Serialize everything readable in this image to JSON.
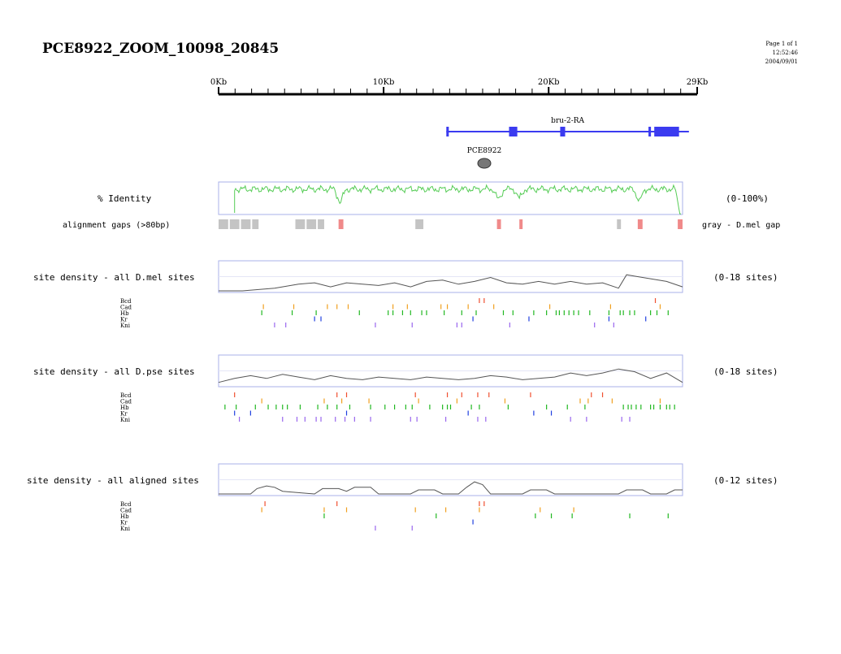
{
  "page": {
    "title": "PCE8922_ZOOM_10098_20845",
    "page_info": "Page 1 of 1",
    "time": "12:52:46",
    "date": "2004/09/01"
  },
  "ruler": {
    "min_kb": 0,
    "max_kb": 29,
    "labels": [
      {
        "kb": 0,
        "text": "0Kb"
      },
      {
        "kb": 10,
        "text": "10Kb"
      },
      {
        "kb": 20,
        "text": "20Kb"
      },
      {
        "kb": 29,
        "text": "29Kb"
      }
    ]
  },
  "gene": {
    "name": "bru-2-RA",
    "start_kb": 13.8,
    "end_kb": 28.5,
    "exons": [
      [
        13.8,
        13.95
      ],
      [
        17.6,
        18.1
      ],
      [
        20.7,
        21.0
      ],
      [
        26.05,
        26.2
      ],
      [
        26.4,
        27.9
      ]
    ],
    "color": "#3b3bf0"
  },
  "element": {
    "name": "PCE8922",
    "kb": 16.1,
    "color": "#777777"
  },
  "identity": {
    "label": "% Identity",
    "range_label": "(0-100%)",
    "color": "#55cc55"
  },
  "gaps": {
    "label": "alignment gaps (>80bp)",
    "legend": "gray - D.mel gap",
    "gray": [
      [
        0,
        0.6
      ],
      [
        0.7,
        1.3
      ],
      [
        1.4,
        2.0
      ],
      [
        2.1,
        2.5
      ],
      [
        4.8,
        5.4
      ],
      [
        5.5,
        6.1
      ],
      [
        6.2,
        6.6
      ],
      [
        12.3,
        12.8
      ],
      [
        24.9,
        25.15
      ]
    ],
    "pink": [
      [
        7.5,
        7.8
      ],
      [
        17.4,
        17.65
      ],
      [
        18.8,
        18.95
      ],
      [
        26.2,
        26.5
      ],
      [
        28.7,
        29.0
      ]
    ],
    "gray_color": "#c4c4c4",
    "pink_color": "#f08a8a"
  },
  "factors": [
    "Bcd",
    "Cad",
    "Hb",
    "Kr",
    "Kni"
  ],
  "factor_colors": {
    "Bcd": "#f05030",
    "Cad": "#f0a020",
    "Hb": "#22b822",
    "Kr": "#2040e0",
    "Kni": "#9966ee"
  },
  "panels": [
    {
      "label": "site density - all D.mel sites",
      "range_label": "(0-18 sites)",
      "profile": [
        [
          0,
          0
        ],
        [
          1.5,
          0
        ],
        [
          2.5,
          0.05
        ],
        [
          3.5,
          0.1
        ],
        [
          5,
          0.25
        ],
        [
          6,
          0.3
        ],
        [
          7,
          0.15
        ],
        [
          8,
          0.3
        ],
        [
          9,
          0.25
        ],
        [
          10,
          0.2
        ],
        [
          11,
          0.3
        ],
        [
          12,
          0.15
        ],
        [
          13,
          0.35
        ],
        [
          14,
          0.4
        ],
        [
          15,
          0.25
        ],
        [
          16,
          0.35
        ],
        [
          17,
          0.5
        ],
        [
          18,
          0.3
        ],
        [
          19,
          0.25
        ],
        [
          20,
          0.35
        ],
        [
          21,
          0.25
        ],
        [
          22,
          0.35
        ],
        [
          23,
          0.25
        ],
        [
          24,
          0.3
        ],
        [
          25,
          0.1
        ],
        [
          25.5,
          0.6
        ],
        [
          26,
          0.55
        ],
        [
          27,
          0.45
        ],
        [
          28,
          0.35
        ],
        [
          29,
          0.15
        ]
      ],
      "sites": {
        "Bcd": [
          16.3,
          16.6,
          27.3
        ],
        "Cad": [
          2.8,
          4.7,
          6.8,
          7.4,
          8.1,
          10.9,
          11.8,
          13.9,
          14.3,
          15.6,
          17.2,
          20.7,
          24.5,
          27.6
        ],
        "Hb": [
          2.7,
          4.6,
          6.1,
          8.8,
          10.6,
          10.9,
          11.5,
          12.0,
          12.7,
          13.0,
          14.1,
          15.2,
          16.1,
          17.8,
          18.4,
          19.7,
          20.5,
          21.1,
          21.3,
          21.6,
          21.9,
          22.2,
          22.5,
          23.2,
          24.4,
          25.1,
          25.3,
          25.7,
          26.0,
          27.0,
          27.4,
          28.1
        ],
        "Kr": [
          6.0,
          6.4,
          15.9,
          19.4,
          24.4,
          26.7
        ],
        "Kni": [
          3.5,
          4.2,
          9.8,
          12.1,
          14.9,
          15.2,
          18.2,
          23.5,
          24.7
        ]
      }
    },
    {
      "label": "site density - all D.pse sites",
      "range_label": "(0-18 sites)",
      "profile": [
        [
          0,
          0.1
        ],
        [
          1,
          0.25
        ],
        [
          2,
          0.35
        ],
        [
          3,
          0.25
        ],
        [
          4,
          0.4
        ],
        [
          5,
          0.3
        ],
        [
          6,
          0.2
        ],
        [
          7,
          0.35
        ],
        [
          8,
          0.25
        ],
        [
          9,
          0.2
        ],
        [
          10,
          0.3
        ],
        [
          11,
          0.25
        ],
        [
          12,
          0.2
        ],
        [
          13,
          0.3
        ],
        [
          14,
          0.25
        ],
        [
          15,
          0.2
        ],
        [
          16,
          0.25
        ],
        [
          17,
          0.35
        ],
        [
          18,
          0.3
        ],
        [
          19,
          0.2
        ],
        [
          20,
          0.25
        ],
        [
          21,
          0.3
        ],
        [
          22,
          0.45
        ],
        [
          23,
          0.35
        ],
        [
          24,
          0.45
        ],
        [
          25,
          0.6
        ],
        [
          26,
          0.5
        ],
        [
          27,
          0.25
        ],
        [
          28,
          0.45
        ],
        [
          29,
          0.1
        ]
      ],
      "sites": {
        "Bcd": [
          1.0,
          7.4,
          8.0,
          12.3,
          14.3,
          15.2,
          16.2,
          16.9,
          19.5,
          23.3,
          24.0
        ],
        "Cad": [
          2.7,
          6.6,
          7.7,
          9.4,
          12.5,
          14.9,
          17.9,
          22.6,
          23.1,
          24.6,
          27.6
        ],
        "Hb": [
          0.4,
          1.1,
          2.3,
          3.1,
          3.6,
          4.0,
          4.3,
          5.1,
          6.2,
          6.8,
          7.4,
          8.2,
          9.5,
          10.4,
          11.0,
          11.7,
          12.1,
          13.2,
          14.0,
          14.3,
          14.5,
          15.8,
          16.3,
          18.1,
          20.5,
          21.8,
          22.9,
          25.3,
          25.6,
          25.8,
          26.1,
          26.4,
          27.0,
          27.2,
          27.6,
          28.0,
          28.2,
          28.5
        ],
        "Kr": [
          1.0,
          2.0,
          8.0,
          15.6,
          19.7,
          20.8
        ],
        "Kni": [
          1.3,
          4.0,
          4.9,
          5.4,
          6.1,
          6.4,
          7.3,
          7.9,
          8.5,
          9.5,
          12.0,
          12.4,
          14.2,
          16.2,
          16.7,
          22.0,
          23.0,
          25.2,
          25.7
        ]
      }
    },
    {
      "label": "site density - all aligned sites",
      "range_label": "(0-12 sites)",
      "profile": [
        [
          0,
          0
        ],
        [
          2,
          0
        ],
        [
          2.4,
          0.2
        ],
        [
          3,
          0.3
        ],
        [
          3.5,
          0.25
        ],
        [
          4,
          0.1
        ],
        [
          6,
          0
        ],
        [
          6.5,
          0.2
        ],
        [
          7.5,
          0.2
        ],
        [
          8,
          0.1
        ],
        [
          8.5,
          0.25
        ],
        [
          9.5,
          0.25
        ],
        [
          10,
          0
        ],
        [
          12,
          0
        ],
        [
          12.5,
          0.15
        ],
        [
          13.5,
          0.15
        ],
        [
          14,
          0
        ],
        [
          15,
          0
        ],
        [
          15.5,
          0.25
        ],
        [
          16,
          0.45
        ],
        [
          16.5,
          0.35
        ],
        [
          17,
          0
        ],
        [
          19,
          0
        ],
        [
          19.5,
          0.15
        ],
        [
          20.5,
          0.15
        ],
        [
          21,
          0
        ],
        [
          25,
          0
        ],
        [
          25.5,
          0.15
        ],
        [
          26.5,
          0.15
        ],
        [
          27,
          0
        ],
        [
          28,
          0
        ],
        [
          28.5,
          0.15
        ],
        [
          29,
          0.15
        ]
      ],
      "sites": {
        "Bcd": [
          2.9,
          7.4,
          16.3,
          16.6
        ],
        "Cad": [
          2.7,
          6.6,
          8.0,
          12.3,
          14.2,
          16.3,
          20.1,
          22.2
        ],
        "Hb": [
          6.6,
          13.6,
          19.8,
          20.8,
          22.1,
          25.7,
          28.1
        ],
        "Kr": [
          15.9
        ],
        "Kni": [
          9.8,
          12.1
        ]
      }
    }
  ]
}
